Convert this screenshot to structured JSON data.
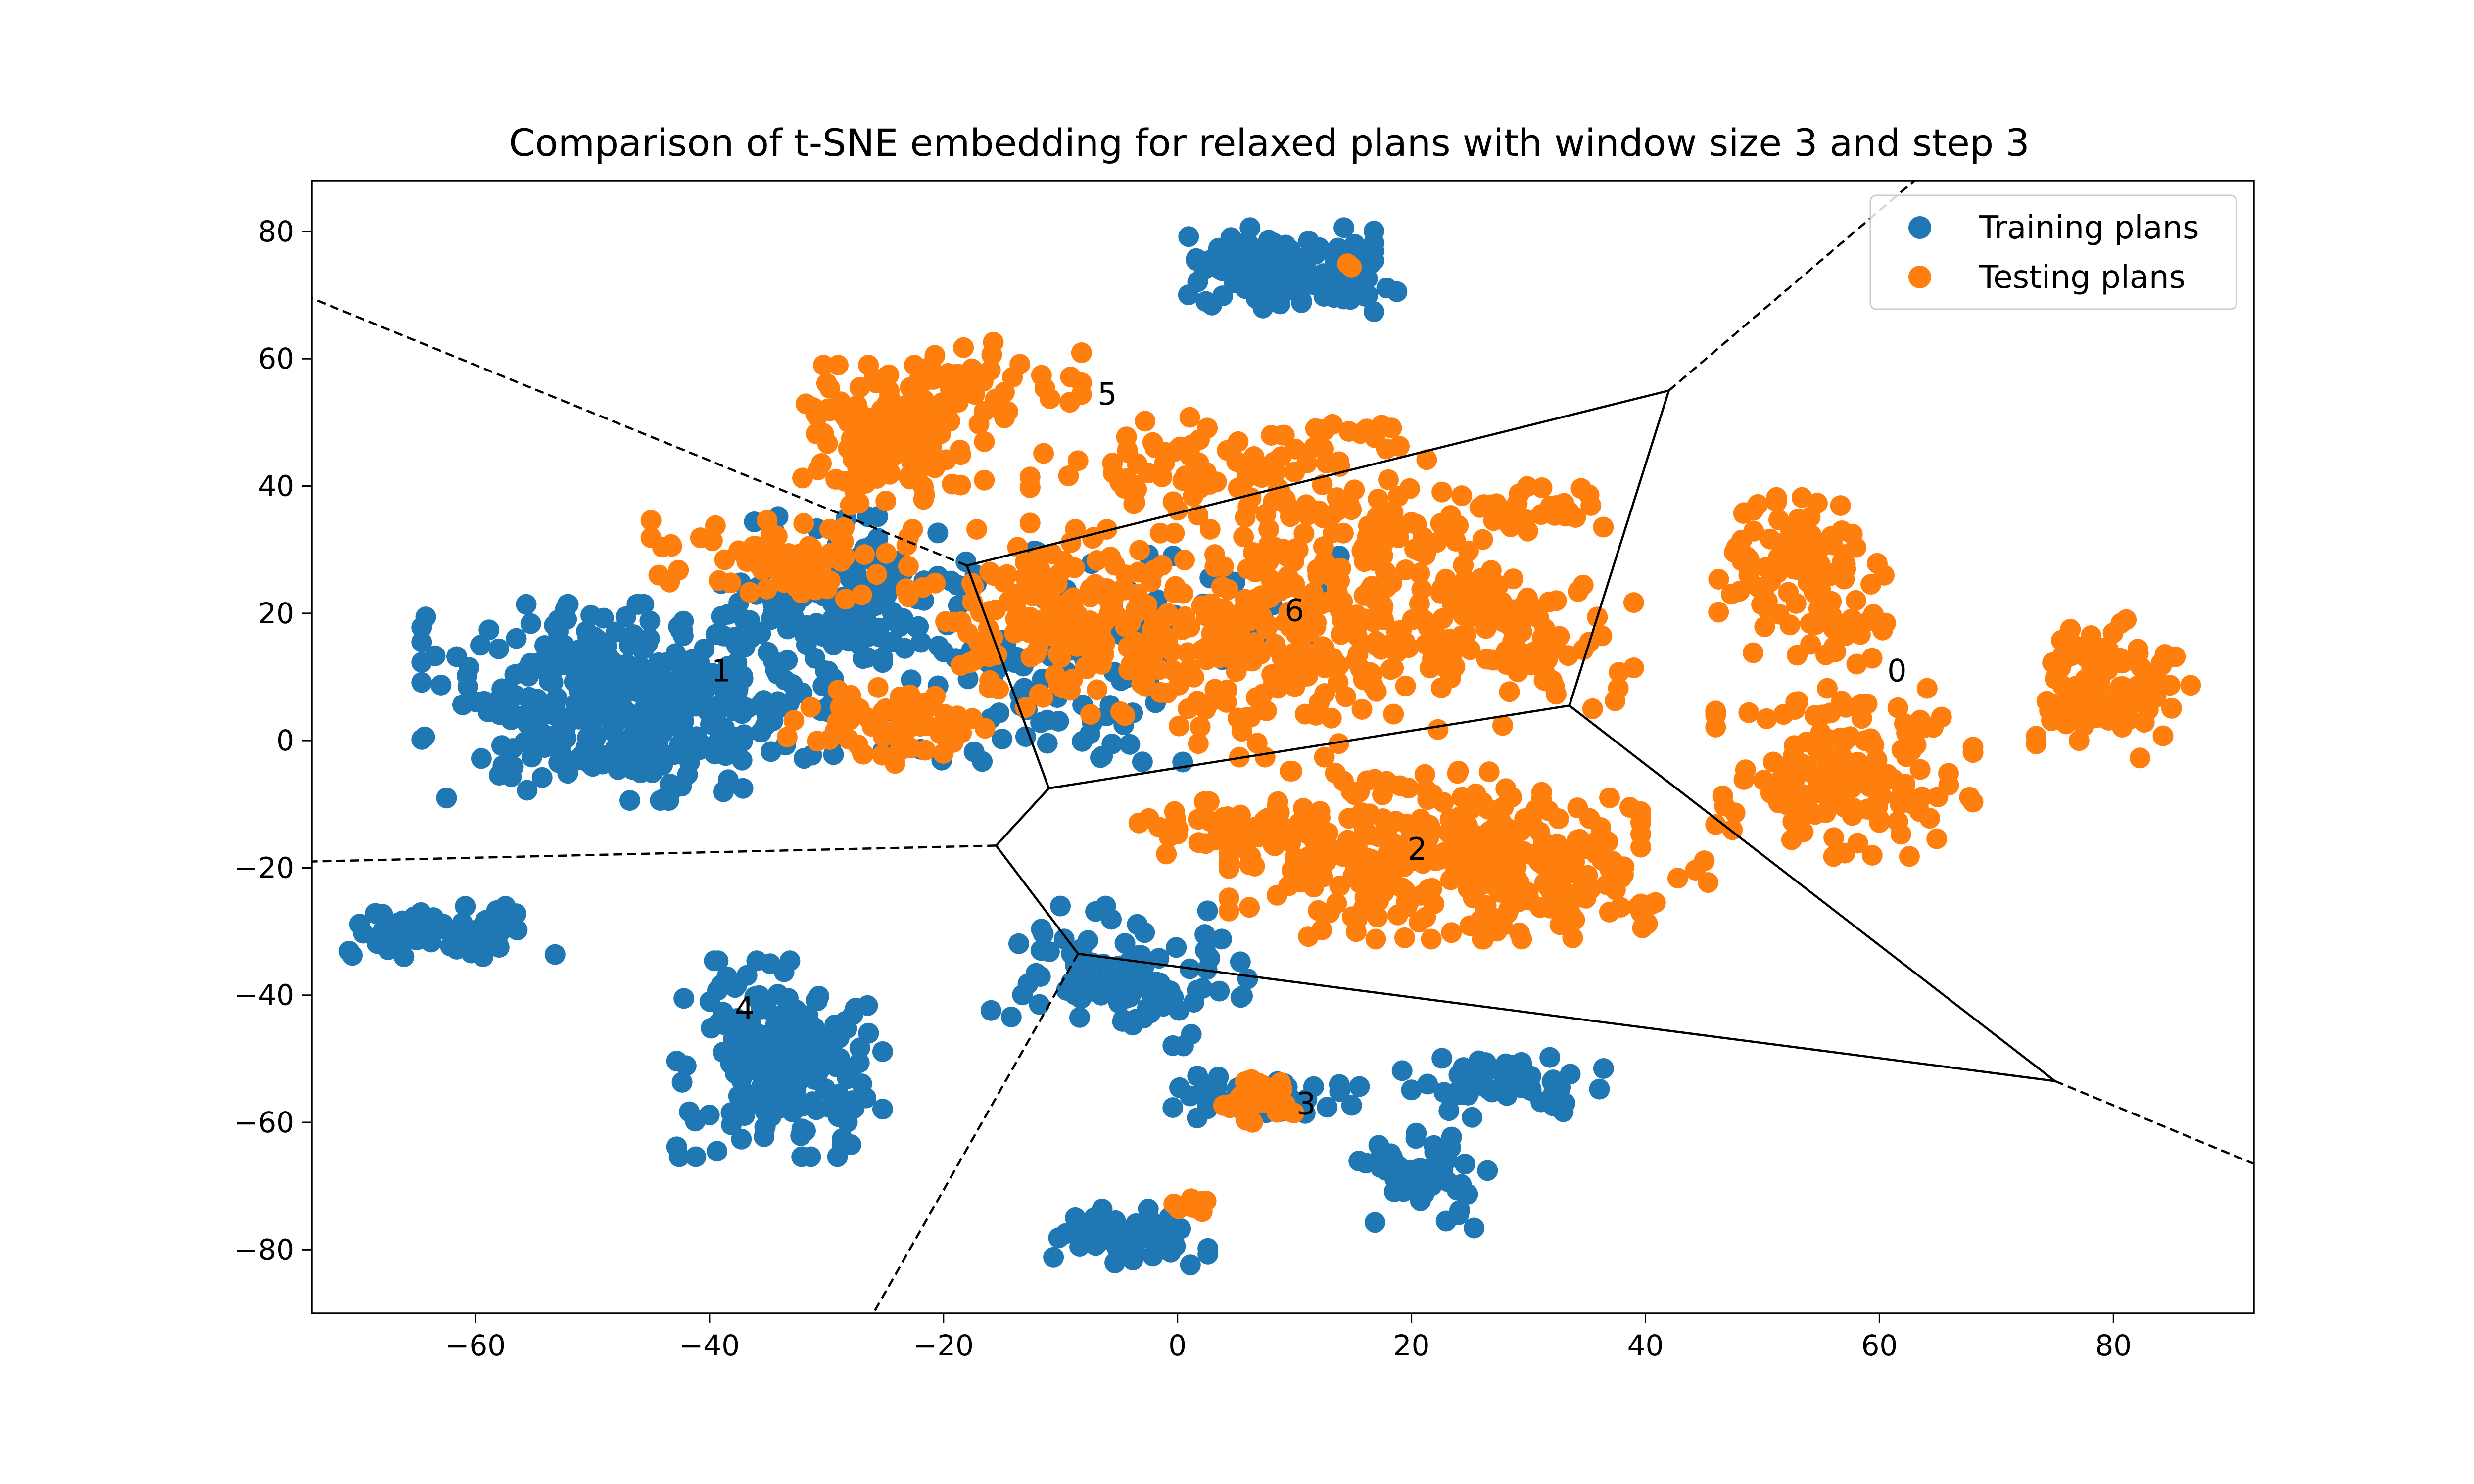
{
  "chart_data": {
    "type": "scatter",
    "title": "Comparison of t-SNE embedding for relaxed plans with window size 3 and step 3",
    "xlabel": "",
    "ylabel": "",
    "xlim": [
      -74,
      92
    ],
    "ylim": [
      -90,
      88
    ],
    "xticks": [
      -60,
      -40,
      -20,
      0,
      20,
      40,
      60,
      80
    ],
    "yticks": [
      -80,
      -60,
      -40,
      -20,
      0,
      20,
      40,
      60,
      80
    ],
    "xtick_labels": [
      "−60",
      "−40",
      "−20",
      "0",
      "20",
      "40",
      "60",
      "80"
    ],
    "ytick_labels": [
      "−80",
      "−60",
      "−40",
      "−20",
      "0",
      "20",
      "40",
      "60",
      "80"
    ],
    "grid": false,
    "legend": {
      "placement": "top-right"
    },
    "series": [
      {
        "name": "Training plans",
        "color": "#1f77b4",
        "clusters": [
          {
            "cx": -47,
            "cy": 6,
            "sx": 8,
            "sy": 7,
            "n": 420
          },
          {
            "cx": -62,
            "cy": -30,
            "sx": 4,
            "sy": 1.8,
            "n": 70
          },
          {
            "cx": -34,
            "cy": -50,
            "sx": 4,
            "sy": 7,
            "n": 220
          },
          {
            "cx": 8,
            "cy": 74,
            "sx": 4,
            "sy": 3,
            "n": 120
          },
          {
            "cx": 15,
            "cy": 70,
            "sx": 2,
            "sy": 1,
            "n": 15
          },
          {
            "cx": -5,
            "cy": -37,
            "sx": 5,
            "sy": 5,
            "n": 110
          },
          {
            "cx": -4,
            "cy": -78,
            "sx": 3,
            "sy": 2,
            "n": 60
          },
          {
            "cx": 7,
            "cy": -56,
            "sx": 4,
            "sy": 1.5,
            "n": 50
          },
          {
            "cx": 28,
            "cy": -54,
            "sx": 4,
            "sy": 2,
            "n": 60
          },
          {
            "cx": 21,
            "cy": -68,
            "sx": 2.5,
            "sy": 4,
            "n": 50
          },
          {
            "cx": -28,
            "cy": 22,
            "sx": 5,
            "sy": 6,
            "n": 140
          },
          {
            "cx": -12,
            "cy": 10,
            "sx": 6,
            "sy": 9,
            "n": 90
          },
          {
            "cx": 2,
            "cy": 18,
            "sx": 6,
            "sy": 5,
            "n": 40
          }
        ]
      },
      {
        "name": "Testing plans",
        "color": "#ff7f0e",
        "clusters": [
          {
            "cx": -24,
            "cy": 48,
            "sx": 4,
            "sy": 5,
            "n": 140
          },
          {
            "cx": -17,
            "cy": 56,
            "sx": 4,
            "sy": 3,
            "n": 40
          },
          {
            "cx": -34,
            "cy": 28,
            "sx": 5,
            "sy": 3,
            "n": 80
          },
          {
            "cx": -24,
            "cy": 3,
            "sx": 5,
            "sy": 3,
            "n": 60
          },
          {
            "cx": -10,
            "cy": 20,
            "sx": 6,
            "sy": 6,
            "n": 140
          },
          {
            "cx": 8,
            "cy": 15,
            "sx": 9,
            "sy": 8,
            "n": 260
          },
          {
            "cx": 5,
            "cy": 42,
            "sx": 8,
            "sy": 4,
            "n": 100
          },
          {
            "cx": 17,
            "cy": 30,
            "sx": 5,
            "sy": 5,
            "n": 80
          },
          {
            "cx": 28,
            "cy": 16,
            "sx": 5,
            "sy": 5,
            "n": 100
          },
          {
            "cx": 30,
            "cy": 36,
            "sx": 3,
            "sy": 2,
            "n": 30
          },
          {
            "cx": 22,
            "cy": -18,
            "sx": 8,
            "sy": 6,
            "n": 280
          },
          {
            "cx": 34,
            "cy": -20,
            "sx": 6,
            "sy": 5,
            "n": 80
          },
          {
            "cx": 5,
            "cy": -14,
            "sx": 4,
            "sy": 2,
            "n": 50
          },
          {
            "cx": 53,
            "cy": 25,
            "sx": 4,
            "sy": 6,
            "n": 110
          },
          {
            "cx": 57,
            "cy": -5,
            "sx": 5,
            "sy": 6,
            "n": 150
          },
          {
            "cx": 80,
            "cy": 8,
            "sx": 3,
            "sy": 5,
            "n": 110
          },
          {
            "cx": 7,
            "cy": -57,
            "sx": 2,
            "sy": 2,
            "n": 35
          },
          {
            "cx": 1,
            "cy": -73,
            "sx": 0.8,
            "sy": 0.8,
            "n": 8
          },
          {
            "cx": 15,
            "cy": 49,
            "sx": 1.5,
            "sy": 0.6,
            "n": 10
          },
          {
            "cx": 15,
            "cy": 75,
            "sx": 0.3,
            "sy": 0.3,
            "n": 2
          }
        ]
      }
    ],
    "voronoi": {
      "vertices": [
        [
          -18,
          27.5
        ],
        [
          42,
          55
        ],
        [
          33.5,
          5.5
        ],
        [
          -11,
          -7.5
        ],
        [
          -15.5,
          -16.5
        ],
        [
          -8.5,
          -33.5
        ],
        [
          75,
          -53.5
        ]
      ],
      "solid_edges": [
        [
          0,
          1
        ],
        [
          1,
          2
        ],
        [
          2,
          3
        ],
        [
          3,
          0
        ],
        [
          3,
          4
        ],
        [
          4,
          5
        ],
        [
          5,
          6
        ],
        [
          6,
          2
        ]
      ],
      "dashed_rays": [
        [
          0,
          -74,
          69.5
        ],
        [
          1,
          63,
          88
        ],
        [
          4,
          -74,
          -19
        ],
        [
          5,
          -26,
          -90
        ],
        [
          6,
          92,
          -66.5
        ]
      ]
    },
    "cluster_labels": [
      {
        "text": "0",
        "x": 61.5,
        "y": 11
      },
      {
        "text": "1",
        "x": -39,
        "y": 11
      },
      {
        "text": "2",
        "x": 20.5,
        "y": -17
      },
      {
        "text": "3",
        "x": 11,
        "y": -57
      },
      {
        "text": "4",
        "x": -37,
        "y": -42
      },
      {
        "text": "5",
        "x": -6,
        "y": 54.5
      },
      {
        "text": "6",
        "x": 10,
        "y": 20.5
      }
    ]
  }
}
